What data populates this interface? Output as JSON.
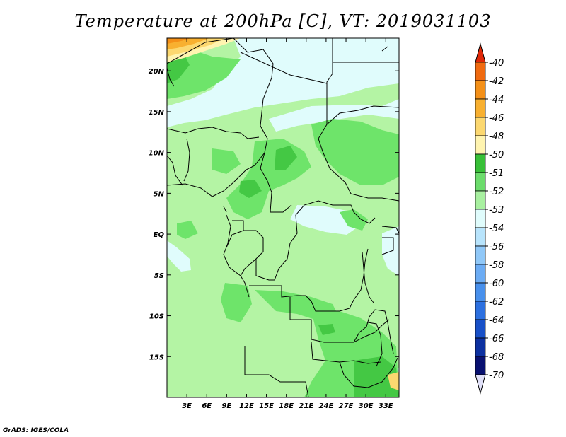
{
  "title": "Temperature at 200hPa [C], VT: 2019031103",
  "credit": "GrADS: IGES/COLA",
  "map": {
    "lon_range": [
      0,
      35
    ],
    "lat_range": [
      -20,
      24
    ],
    "x_ticks": [
      {
        "lon": 3,
        "label": "3E"
      },
      {
        "lon": 6,
        "label": "6E"
      },
      {
        "lon": 9,
        "label": "9E"
      },
      {
        "lon": 12,
        "label": "12E"
      },
      {
        "lon": 15,
        "label": "15E"
      },
      {
        "lon": 18,
        "label": "18E"
      },
      {
        "lon": 21,
        "label": "21E"
      },
      {
        "lon": 24,
        "label": "24E"
      },
      {
        "lon": 27,
        "label": "27E"
      },
      {
        "lon": 30,
        "label": "30E"
      },
      {
        "lon": 33,
        "label": "33E"
      }
    ],
    "y_ticks": [
      {
        "lat": 20,
        "label": "20N"
      },
      {
        "lat": 15,
        "label": "15N"
      },
      {
        "lat": 10,
        "label": "10N"
      },
      {
        "lat": 5,
        "label": "5N"
      },
      {
        "lat": 0,
        "label": "EQ"
      },
      {
        "lat": -5,
        "label": "5S"
      },
      {
        "lat": -10,
        "label": "10S"
      },
      {
        "lat": -15,
        "label": "15S"
      }
    ]
  },
  "colorbar": {
    "levels": [
      "-40",
      "-42",
      "-44",
      "-46",
      "-48",
      "-50",
      "-51",
      "-52",
      "-53",
      "-54",
      "-56",
      "-58",
      "-60",
      "-62",
      "-64",
      "-66",
      "-68",
      "-70"
    ],
    "colors": [
      "#f04010",
      "#f06a10",
      "#f49018",
      "#f8b030",
      "#fcd870",
      "#fff4b0",
      "#38c038",
      "#6cdc6c",
      "#a8f0a0",
      "#e0fcfc",
      "#b8e4fc",
      "#90c8f8",
      "#6cacf4",
      "#4890ec",
      "#2c70e0",
      "#1850c8",
      "#0c30a0",
      "#081070"
    ],
    "top_arrow_color": "#e02808",
    "bottom_arrow_color": "#e0e0f8"
  }
}
